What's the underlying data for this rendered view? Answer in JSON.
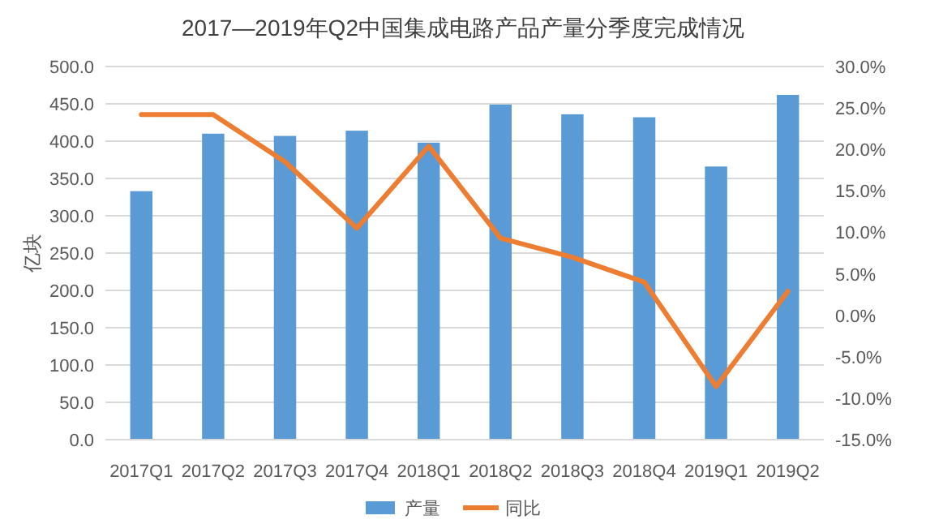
{
  "chart_data": {
    "type": "bar",
    "title": "2017—2019年Q2中国集成电路产品产量分季度完成情况",
    "ylabel": "亿块",
    "categories": [
      "2017Q1",
      "2017Q2",
      "2017Q3",
      "2017Q4",
      "2018Q1",
      "2018Q2",
      "2018Q3",
      "2018Q4",
      "2019Q1",
      "2019Q2"
    ],
    "series": [
      {
        "name": "产量",
        "color": "#5b9bd5",
        "values": [
          333,
          410,
          407,
          414,
          398,
          449,
          436,
          432,
          366,
          462
        ]
      },
      {
        "name": "同比",
        "type": "line",
        "axis": "y2",
        "color": "#ed7d31",
        "values": [
          24.2,
          24.2,
          18.5,
          10.5,
          20.4,
          9.3,
          7.0,
          4.0,
          -8.6,
          2.9
        ]
      }
    ],
    "ylim": [
      0,
      500
    ],
    "yticks": [
      {
        "value": 0,
        "label": "0.0"
      },
      {
        "value": 50,
        "label": "50.0"
      },
      {
        "value": 100,
        "label": "100.0"
      },
      {
        "value": 150,
        "label": "150.0"
      },
      {
        "value": 200,
        "label": "200.0"
      },
      {
        "value": 250,
        "label": "250.0"
      },
      {
        "value": 300,
        "label": "300.0"
      },
      {
        "value": 350,
        "label": "350.0"
      },
      {
        "value": 400,
        "label": "400.0"
      },
      {
        "value": 450,
        "label": "450.0"
      },
      {
        "value": 500,
        "label": "500.0"
      }
    ],
    "y2lim": [
      -15,
      30
    ],
    "y2ticks": [
      {
        "value": -15,
        "label": "-15.0%"
      },
      {
        "value": -10,
        "label": "-10.0%"
      },
      {
        "value": -5,
        "label": "-5.0%"
      },
      {
        "value": 0,
        "label": "0.0%"
      },
      {
        "value": 5,
        "label": "5.0%"
      },
      {
        "value": 10,
        "label": "10.0%"
      },
      {
        "value": 15,
        "label": "15.0%"
      },
      {
        "value": 20,
        "label": "20.0%"
      },
      {
        "value": 25,
        "label": "25.0%"
      },
      {
        "value": 30,
        "label": "30.0%"
      }
    ],
    "grid": "y",
    "legend": "bottom",
    "marker": "none",
    "line_style": "solid"
  }
}
